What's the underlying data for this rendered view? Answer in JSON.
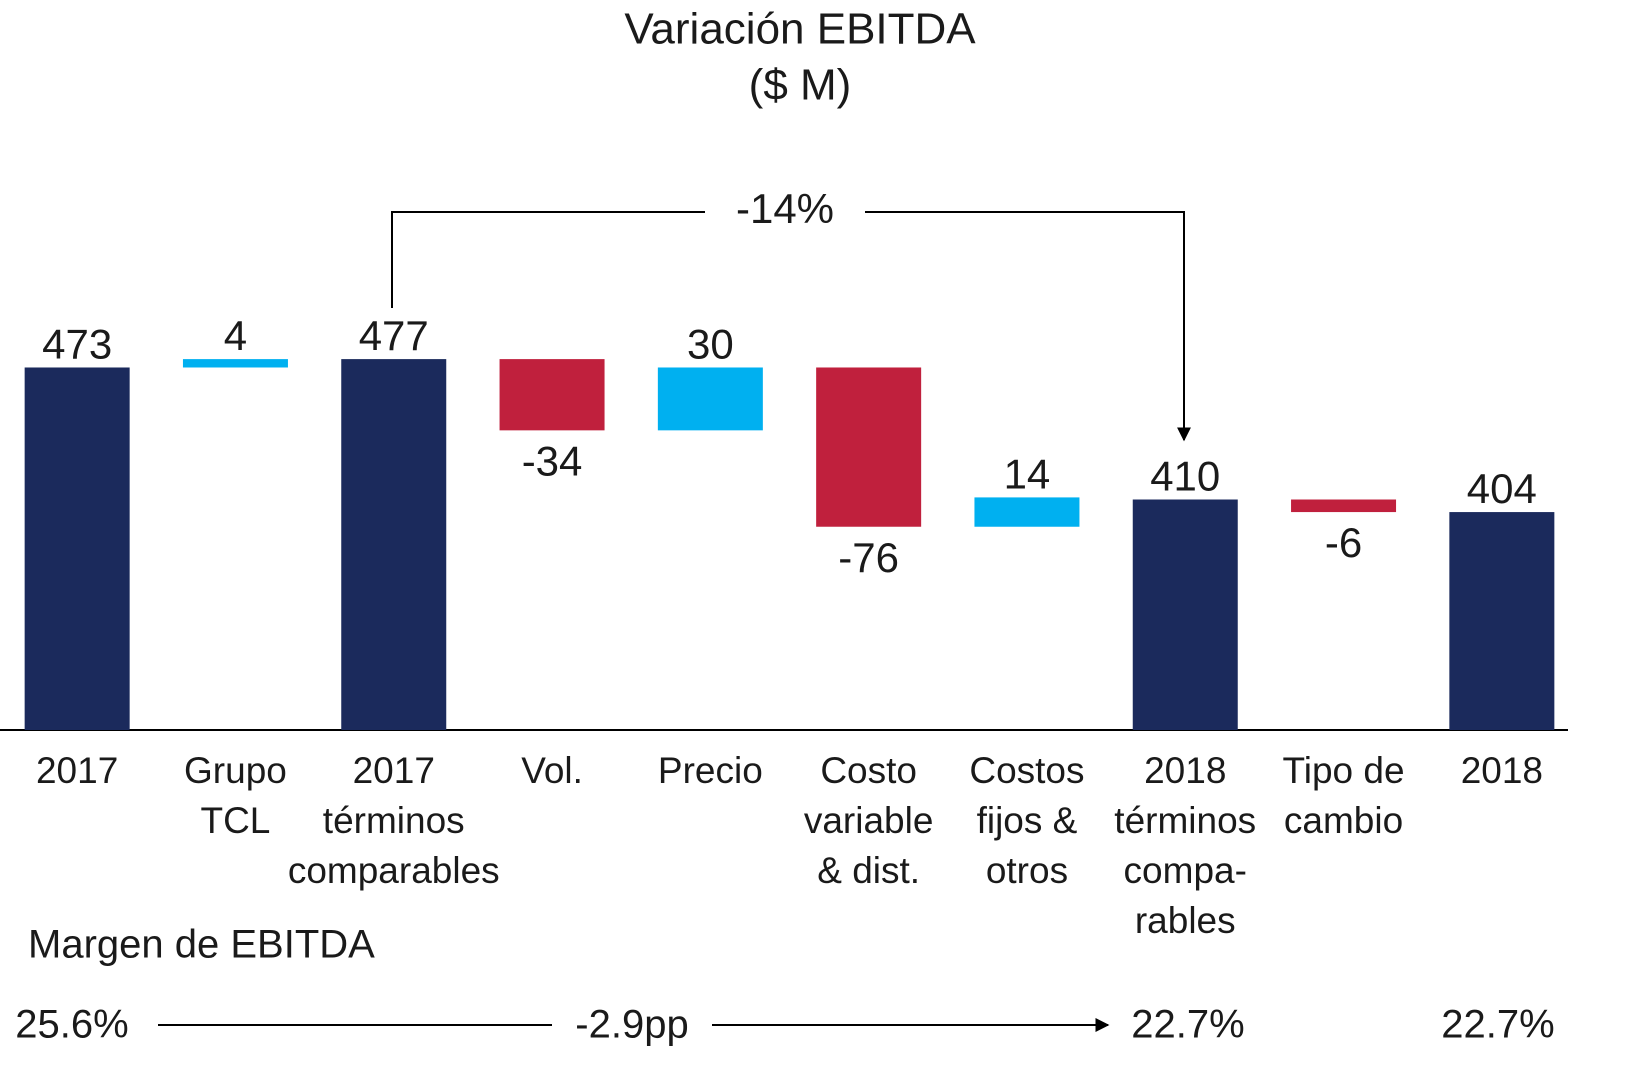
{
  "chart_data": {
    "type": "waterfall",
    "title": [
      "Variación EBITDA",
      "($ M)"
    ],
    "categories": [
      [
        "2017"
      ],
      [
        "Grupo",
        "TCL"
      ],
      [
        "2017",
        "términos",
        "comparables"
      ],
      [
        "Vol."
      ],
      [
        "Precio"
      ],
      [
        "Costo",
        "variable",
        "& dist."
      ],
      [
        "Costos",
        "fijos &",
        "otros"
      ],
      [
        "2018",
        "términos",
        "compa-",
        "rables"
      ],
      [
        "Tipo de",
        "cambio"
      ],
      [
        "2018"
      ]
    ],
    "values": [
      473,
      4,
      477,
      -34,
      30,
      -76,
      14,
      410,
      -6,
      404
    ],
    "kinds": [
      "total",
      "delta",
      "total",
      "delta",
      "delta",
      "delta",
      "delta",
      "total",
      "delta",
      "total"
    ],
    "colors": {
      "total": "#1b2a5c",
      "positive": "#00b0f0",
      "negative": "#c0203d"
    },
    "ylim": [
      300,
      520
    ],
    "change_annotation": "-14%",
    "margin_title": "Margen de EBITDA",
    "margins": [
      "25.6%",
      "-2.9pp",
      "22.7%",
      "22.7%"
    ]
  }
}
